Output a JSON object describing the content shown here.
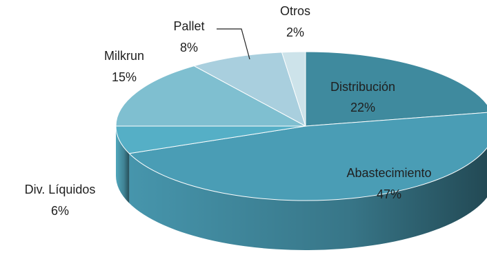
{
  "chart_data": {
    "type": "pie",
    "categories": [
      "Distribución",
      "Abastecimiento",
      "Div. Líquidos",
      "Milkrun",
      "Pallet",
      "Otros"
    ],
    "values": [
      22,
      47,
      6,
      15,
      8,
      2
    ],
    "value_labels": [
      "22%",
      "47%",
      "6%",
      "15%",
      "8%",
      "2%"
    ],
    "colors": [
      "#3f8a9e",
      "#4a9db5",
      "#55afc6",
      "#7fbfd0",
      "#a9cfde",
      "#cde3ea"
    ]
  }
}
